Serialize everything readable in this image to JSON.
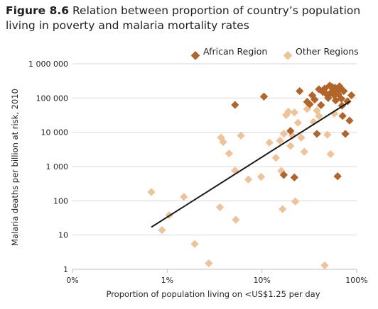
{
  "title": {
    "figure_label": "Figure 8.6",
    "text": "Relation between proportion of country’s population living in poverty and malaria mortality rates"
  },
  "colors": {
    "african": "#b2652a",
    "other": "#eec39a",
    "trend": "#1a1a1a",
    "grid": "#d9d9d9",
    "axis": "#bfbfbf"
  },
  "chart_data": {
    "type": "scatter",
    "xscale": "log",
    "yscale": "log",
    "xlabel": "Proportion of population living on <US$1.25 per day",
    "ylabel": "Malaria deaths per billion at risk, 2010",
    "xlim": [
      0.1,
      100
    ],
    "ylim": [
      1,
      1000000
    ],
    "x_ticks": [
      {
        "value": 0.1,
        "label": "0%"
      },
      {
        "value": 1,
        "label": "1%"
      },
      {
        "value": 10,
        "label": "10%"
      },
      {
        "value": 100,
        "label": "100%"
      }
    ],
    "y_ticks": [
      {
        "value": 1,
        "label": "1"
      },
      {
        "value": 10,
        "label": "10"
      },
      {
        "value": 100,
        "label": "100"
      },
      {
        "value": 1000,
        "label": "1 000"
      },
      {
        "value": 10000,
        "label": "10 000"
      },
      {
        "value": 100000,
        "label": "100 000"
      },
      {
        "value": 1000000,
        "label": "1 000 000"
      }
    ],
    "grid": "horizontal",
    "legend_position": "top-right",
    "series": [
      {
        "name": "African Region",
        "color": "#b2652a",
        "points": [
          [
            5.2,
            63000
          ],
          [
            10.5,
            110000
          ],
          [
            20,
            11000
          ],
          [
            17,
            570
          ],
          [
            22,
            480
          ],
          [
            25,
            160000
          ],
          [
            30,
            77000
          ],
          [
            32,
            66000
          ],
          [
            34,
            120000
          ],
          [
            36,
            90000
          ],
          [
            38,
            9000
          ],
          [
            40,
            180000
          ],
          [
            42,
            62000
          ],
          [
            44,
            150000
          ],
          [
            46,
            190000
          ],
          [
            48,
            130000
          ],
          [
            50,
            100000
          ],
          [
            52,
            230000
          ],
          [
            53,
            140000
          ],
          [
            55,
            210000
          ],
          [
            56,
            160000
          ],
          [
            58,
            120000
          ],
          [
            59,
            200000
          ],
          [
            60,
            85000
          ],
          [
            61,
            180000
          ],
          [
            62,
            150000
          ],
          [
            63,
            520
          ],
          [
            64,
            130000
          ],
          [
            66,
            220000
          ],
          [
            67,
            200000
          ],
          [
            69,
            95000
          ],
          [
            70,
            60000
          ],
          [
            71,
            30000
          ],
          [
            73,
            160000
          ],
          [
            76,
            9000
          ],
          [
            80,
            80000
          ],
          [
            84,
            22000
          ],
          [
            88,
            120000
          ]
        ]
      },
      {
        "name": "Other Regions",
        "color": "#eec39a",
        "points": [
          [
            0.68,
            180
          ],
          [
            0.88,
            14
          ],
          [
            1.05,
            38
          ],
          [
            1.5,
            130
          ],
          [
            1.95,
            5.5
          ],
          [
            2.75,
            1.5
          ],
          [
            3.6,
            65
          ],
          [
            3.7,
            7000
          ],
          [
            3.9,
            5200
          ],
          [
            4.5,
            2400
          ],
          [
            5.2,
            760
          ],
          [
            5.3,
            28
          ],
          [
            6.0,
            8000
          ],
          [
            7.2,
            420
          ],
          [
            9.8,
            500
          ],
          [
            12,
            5000
          ],
          [
            14,
            1800
          ],
          [
            15.5,
            5700
          ],
          [
            16,
            750
          ],
          [
            16.5,
            57
          ],
          [
            17,
            9000
          ],
          [
            18,
            32000
          ],
          [
            19,
            40000
          ],
          [
            20,
            4000
          ],
          [
            21,
            8000
          ],
          [
            22,
            38000
          ],
          [
            22.5,
            95
          ],
          [
            24,
            19000
          ],
          [
            26,
            7000
          ],
          [
            28,
            2700
          ],
          [
            30,
            48000
          ],
          [
            35,
            20000
          ],
          [
            38,
            43000
          ],
          [
            40,
            30000
          ],
          [
            46,
            1.3
          ],
          [
            49,
            8500
          ],
          [
            53,
            2300
          ],
          [
            58,
            35000
          ]
        ]
      }
    ],
    "trend_line": {
      "from": [
        0.68,
        17
      ],
      "to": [
        85,
        80000
      ]
    }
  }
}
